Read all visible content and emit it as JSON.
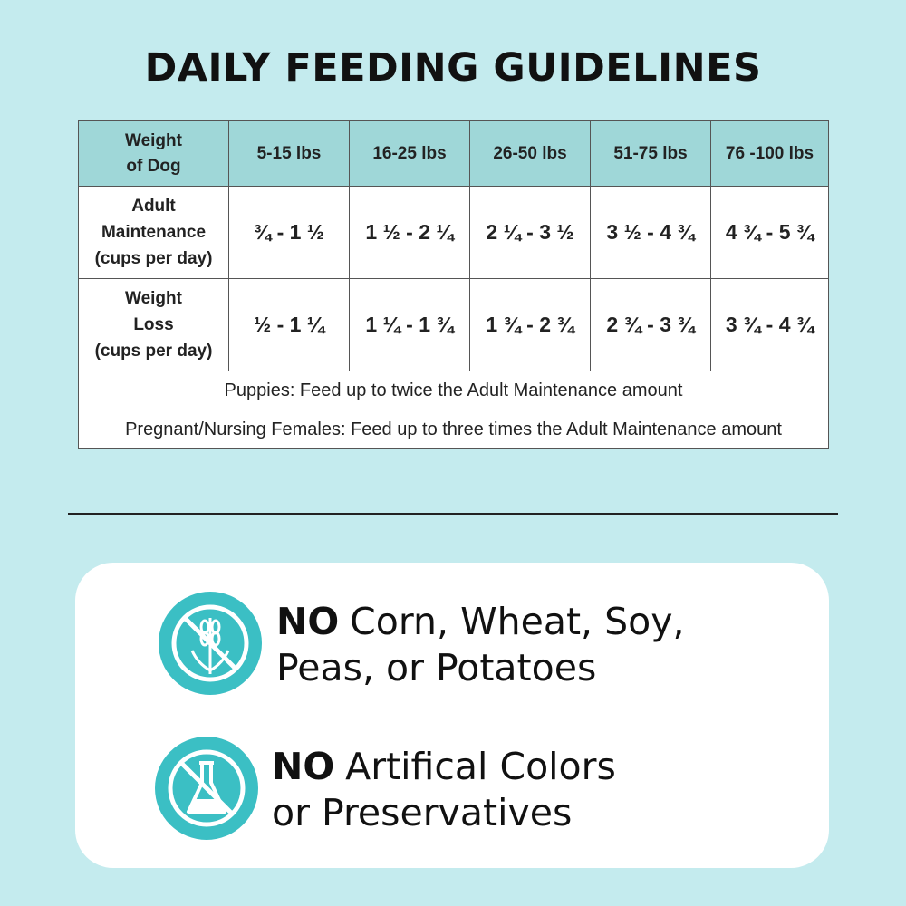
{
  "header": {
    "title": "DAILY FEEDING GUIDELINES"
  },
  "table": {
    "header": [
      "Weight\nof Dog",
      "5-15 lbs",
      "16-25 lbs",
      "26-50 lbs",
      "51-75 lbs",
      "76 -100 lbs"
    ],
    "rows": [
      [
        "Adult\nMaintenance\n(cups per day)",
        "¾ - 1 ½",
        "1 ½ - 2 ¼",
        "2 ¼ - 3 ½",
        "3 ½ - 4 ¾",
        "4 ¾ - 5 ¾"
      ],
      [
        "Weight\nLoss\n(cups per day)",
        "½ - 1 ¼",
        "1 ¼ - 1 ¾",
        "1 ¾ - 2 ¾",
        "2 ¾ - 3 ¾",
        "3 ¾ - 4 ¾"
      ]
    ],
    "notes": [
      "Puppies: Feed up to twice the Adult Maintenance amount",
      "Pregnant/Nursing Females: Feed up to three times the Adult Maintenance amount"
    ]
  },
  "features": [
    {
      "emphasis": "NO",
      "text": "Corn, Wheat, Soy,\nPeas, or Potatoes"
    },
    {
      "emphasis": "NO",
      "text": "Artifical Colors\nor Preservatives"
    }
  ]
}
